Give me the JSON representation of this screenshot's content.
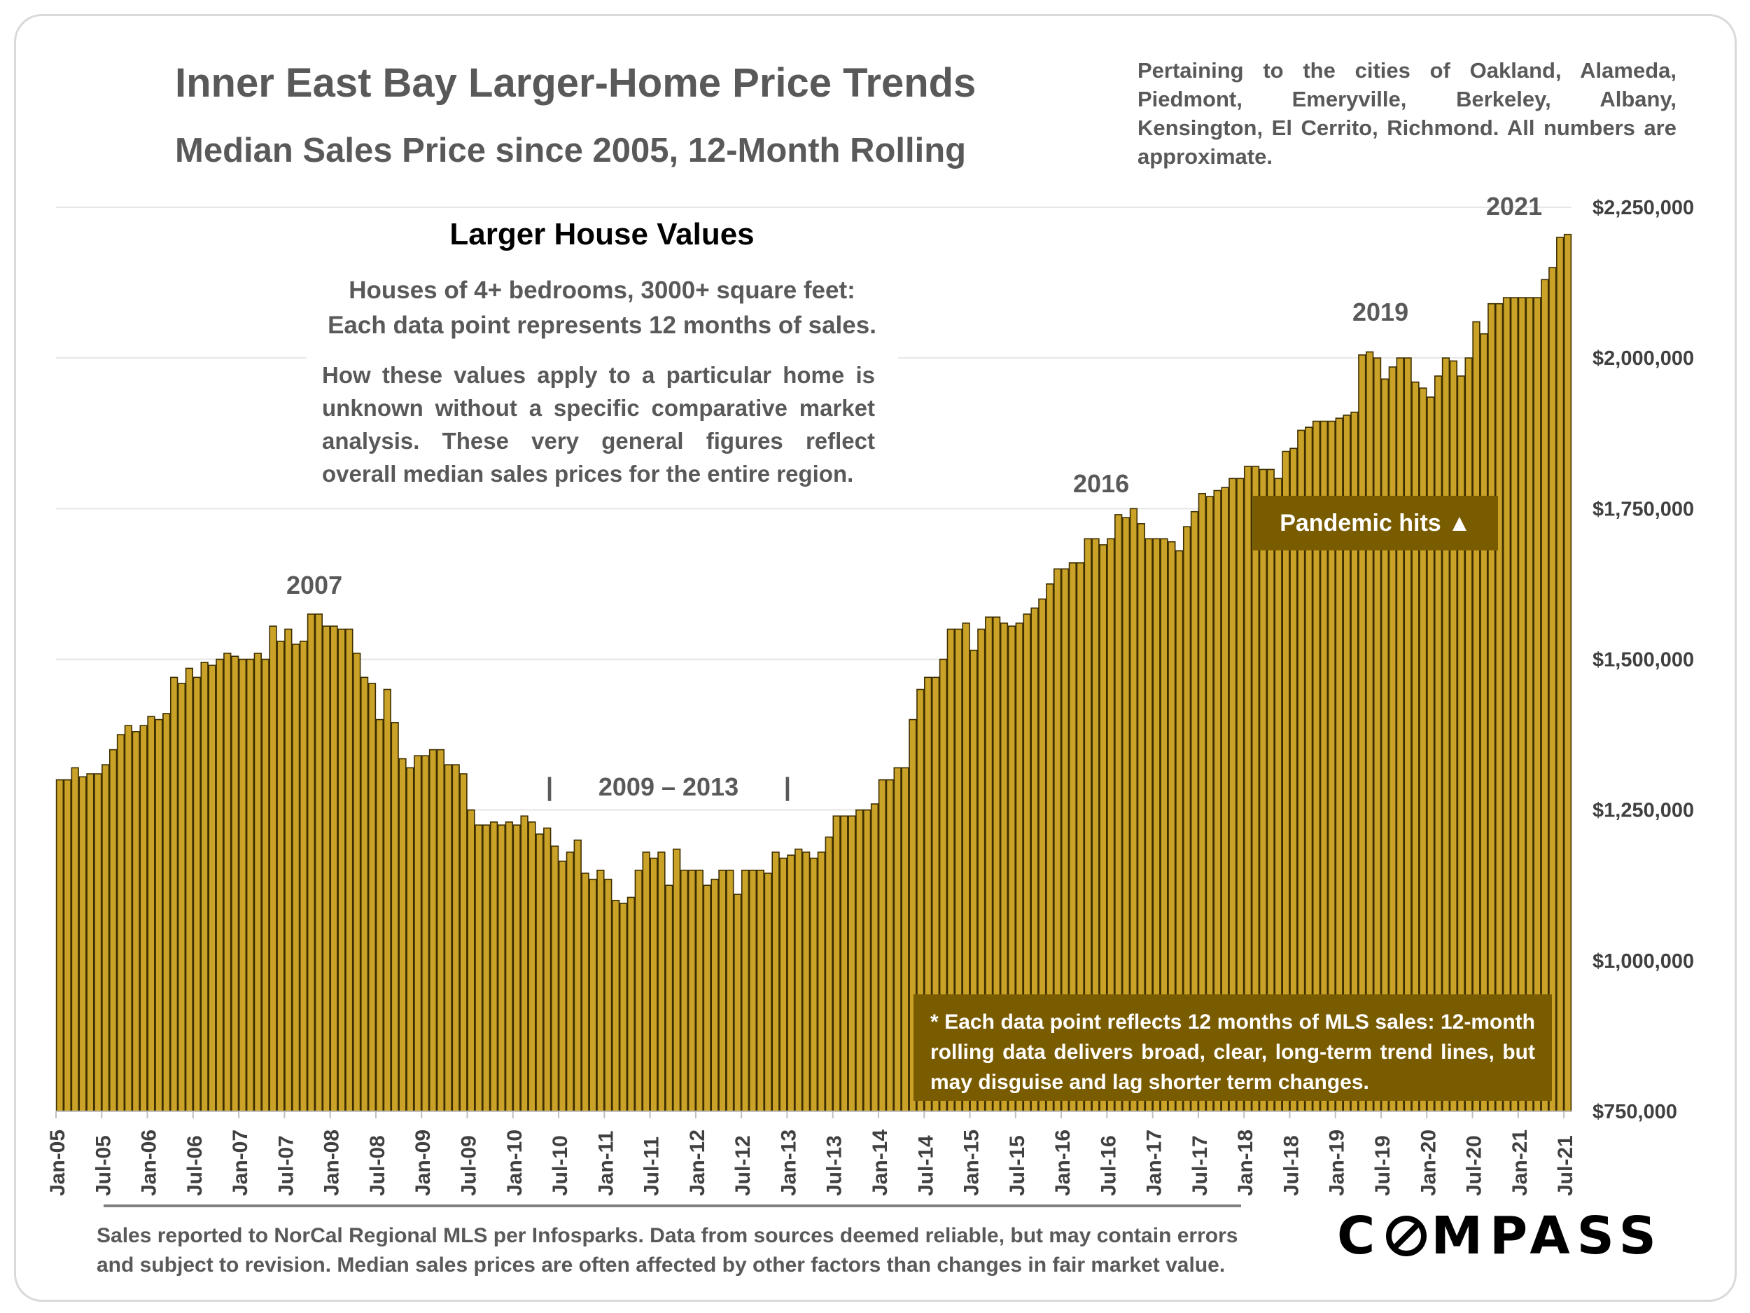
{
  "header": {
    "title": "Inner East Bay Larger-Home Price Trends",
    "subtitle": "Median Sales Price since 2005, 12-Month Rolling",
    "cities_note": "Pertaining to the cities of Oakland, Alameda, Piedmont, Emeryville, Berkeley, Albany, Kensington, El Cerrito, Richmond. All numbers are approximate."
  },
  "info_box": {
    "heading": "Larger House Values",
    "line1": "Houses of 4+ bedrooms, 3000+ square feet:",
    "line2": "Each data point represents 12 months of sales.",
    "body": "How these values apply to a particular home is unknown without a specific comparative market analysis. These very general figures reflect overall median sales prices for the entire region."
  },
  "annotations": {
    "y2007": "2007",
    "y2016": "2016",
    "y2019": "2019",
    "y2021": "2021",
    "range_bar_left": "|",
    "range_label": "2009 – 2013",
    "range_bar_right": "|",
    "pandemic": "Pandemic hits ▲",
    "footnote": "* Each data point reflects 12 months of MLS sales: 12-month rolling data delivers broad, clear, long-term trend lines, but may disguise and lag shorter term changes."
  },
  "footer": {
    "source": "Sales reported to NorCal Regional MLS per Infosparks. Data from sources deemed reliable, but may contain errors and subject to revision. Median sales prices are often affected by other factors than changes in fair market value.",
    "logo_left": "C",
    "logo_right": "MPASS"
  },
  "colors": {
    "bar_fill": "#c9a227",
    "bar_edge": "#3d2e00",
    "accent_box": "#7a5c00",
    "text": "#595959"
  },
  "chart_data": {
    "type": "bar",
    "title": "Inner East Bay Larger-Home Price Trends",
    "xlabel": "",
    "ylabel": "",
    "ylim": [
      750000,
      2250000
    ],
    "grid": true,
    "yticks": [
      750000,
      1000000,
      1250000,
      1500000,
      1750000,
      2000000,
      2250000
    ],
    "ytick_labels": [
      "$750,000",
      "$1,000,000",
      "$1,250,000",
      "$1,500,000",
      "$1,750,000",
      "$2,000,000",
      "$2,250,000"
    ],
    "start": "Jan-05",
    "xtick_labels": [
      "Jan-05",
      "Jul-05",
      "Jan-06",
      "Jul-06",
      "Jan-07",
      "Jul-07",
      "Jan-08",
      "Jul-08",
      "Jan-09",
      "Jul-09",
      "Jan-10",
      "Jul-10",
      "Jan-11",
      "Jul-11",
      "Jan-12",
      "Jul-12",
      "Jan-13",
      "Jul-13",
      "Jan-14",
      "Jul-14",
      "Jan-15",
      "Jul-15",
      "Jan-16",
      "Jul-16",
      "Jan-17",
      "Jul-17",
      "Jan-18",
      "Jul-18",
      "Jan-19",
      "Jul-19",
      "Jan-20",
      "Jul-20",
      "Jan-21",
      "Jul-21"
    ],
    "values": [
      1300000,
      1300000,
      1320000,
      1305000,
      1310000,
      1310000,
      1325000,
      1350000,
      1375000,
      1390000,
      1380000,
      1390000,
      1405000,
      1400000,
      1410000,
      1470000,
      1460000,
      1485000,
      1470000,
      1495000,
      1490000,
      1500000,
      1510000,
      1505000,
      1500000,
      1500000,
      1510000,
      1500000,
      1555000,
      1530000,
      1550000,
      1525000,
      1530000,
      1575000,
      1575000,
      1555000,
      1555000,
      1550000,
      1550000,
      1510000,
      1470000,
      1460000,
      1400000,
      1450000,
      1395000,
      1335000,
      1320000,
      1340000,
      1340000,
      1350000,
      1350000,
      1325000,
      1325000,
      1310000,
      1250000,
      1225000,
      1225000,
      1230000,
      1225000,
      1230000,
      1225000,
      1240000,
      1230000,
      1210000,
      1220000,
      1190000,
      1165000,
      1180000,
      1200000,
      1145000,
      1135000,
      1150000,
      1135000,
      1100000,
      1095000,
      1105000,
      1150000,
      1180000,
      1170000,
      1180000,
      1125000,
      1185000,
      1150000,
      1150000,
      1150000,
      1125000,
      1135000,
      1150000,
      1150000,
      1110000,
      1150000,
      1150000,
      1150000,
      1145000,
      1180000,
      1170000,
      1175000,
      1185000,
      1180000,
      1170000,
      1180000,
      1205000,
      1240000,
      1240000,
      1240000,
      1250000,
      1250000,
      1260000,
      1300000,
      1300000,
      1320000,
      1320000,
      1400000,
      1450000,
      1470000,
      1470000,
      1500000,
      1550000,
      1550000,
      1560000,
      1515000,
      1550000,
      1570000,
      1570000,
      1560000,
      1555000,
      1560000,
      1575000,
      1585000,
      1600000,
      1625000,
      1650000,
      1650000,
      1660000,
      1660000,
      1700000,
      1700000,
      1690000,
      1700000,
      1740000,
      1735000,
      1750000,
      1725000,
      1700000,
      1700000,
      1700000,
      1695000,
      1680000,
      1720000,
      1745000,
      1775000,
      1770000,
      1780000,
      1785000,
      1800000,
      1800000,
      1820000,
      1820000,
      1815000,
      1815000,
      1800000,
      1845000,
      1850000,
      1880000,
      1885000,
      1895000,
      1895000,
      1895000,
      1900000,
      1905000,
      1910000,
      2005000,
      2010000,
      2000000,
      1965000,
      1985000,
      2000000,
      2000000,
      1960000,
      1950000,
      1935000,
      1970000,
      2000000,
      1995000,
      1970000,
      2000000,
      2060000,
      2040000,
      2090000,
      2090000,
      2100000,
      2100000,
      2100000,
      2100000,
      2100000,
      2130000,
      2150000,
      2200000,
      2205000
    ]
  }
}
